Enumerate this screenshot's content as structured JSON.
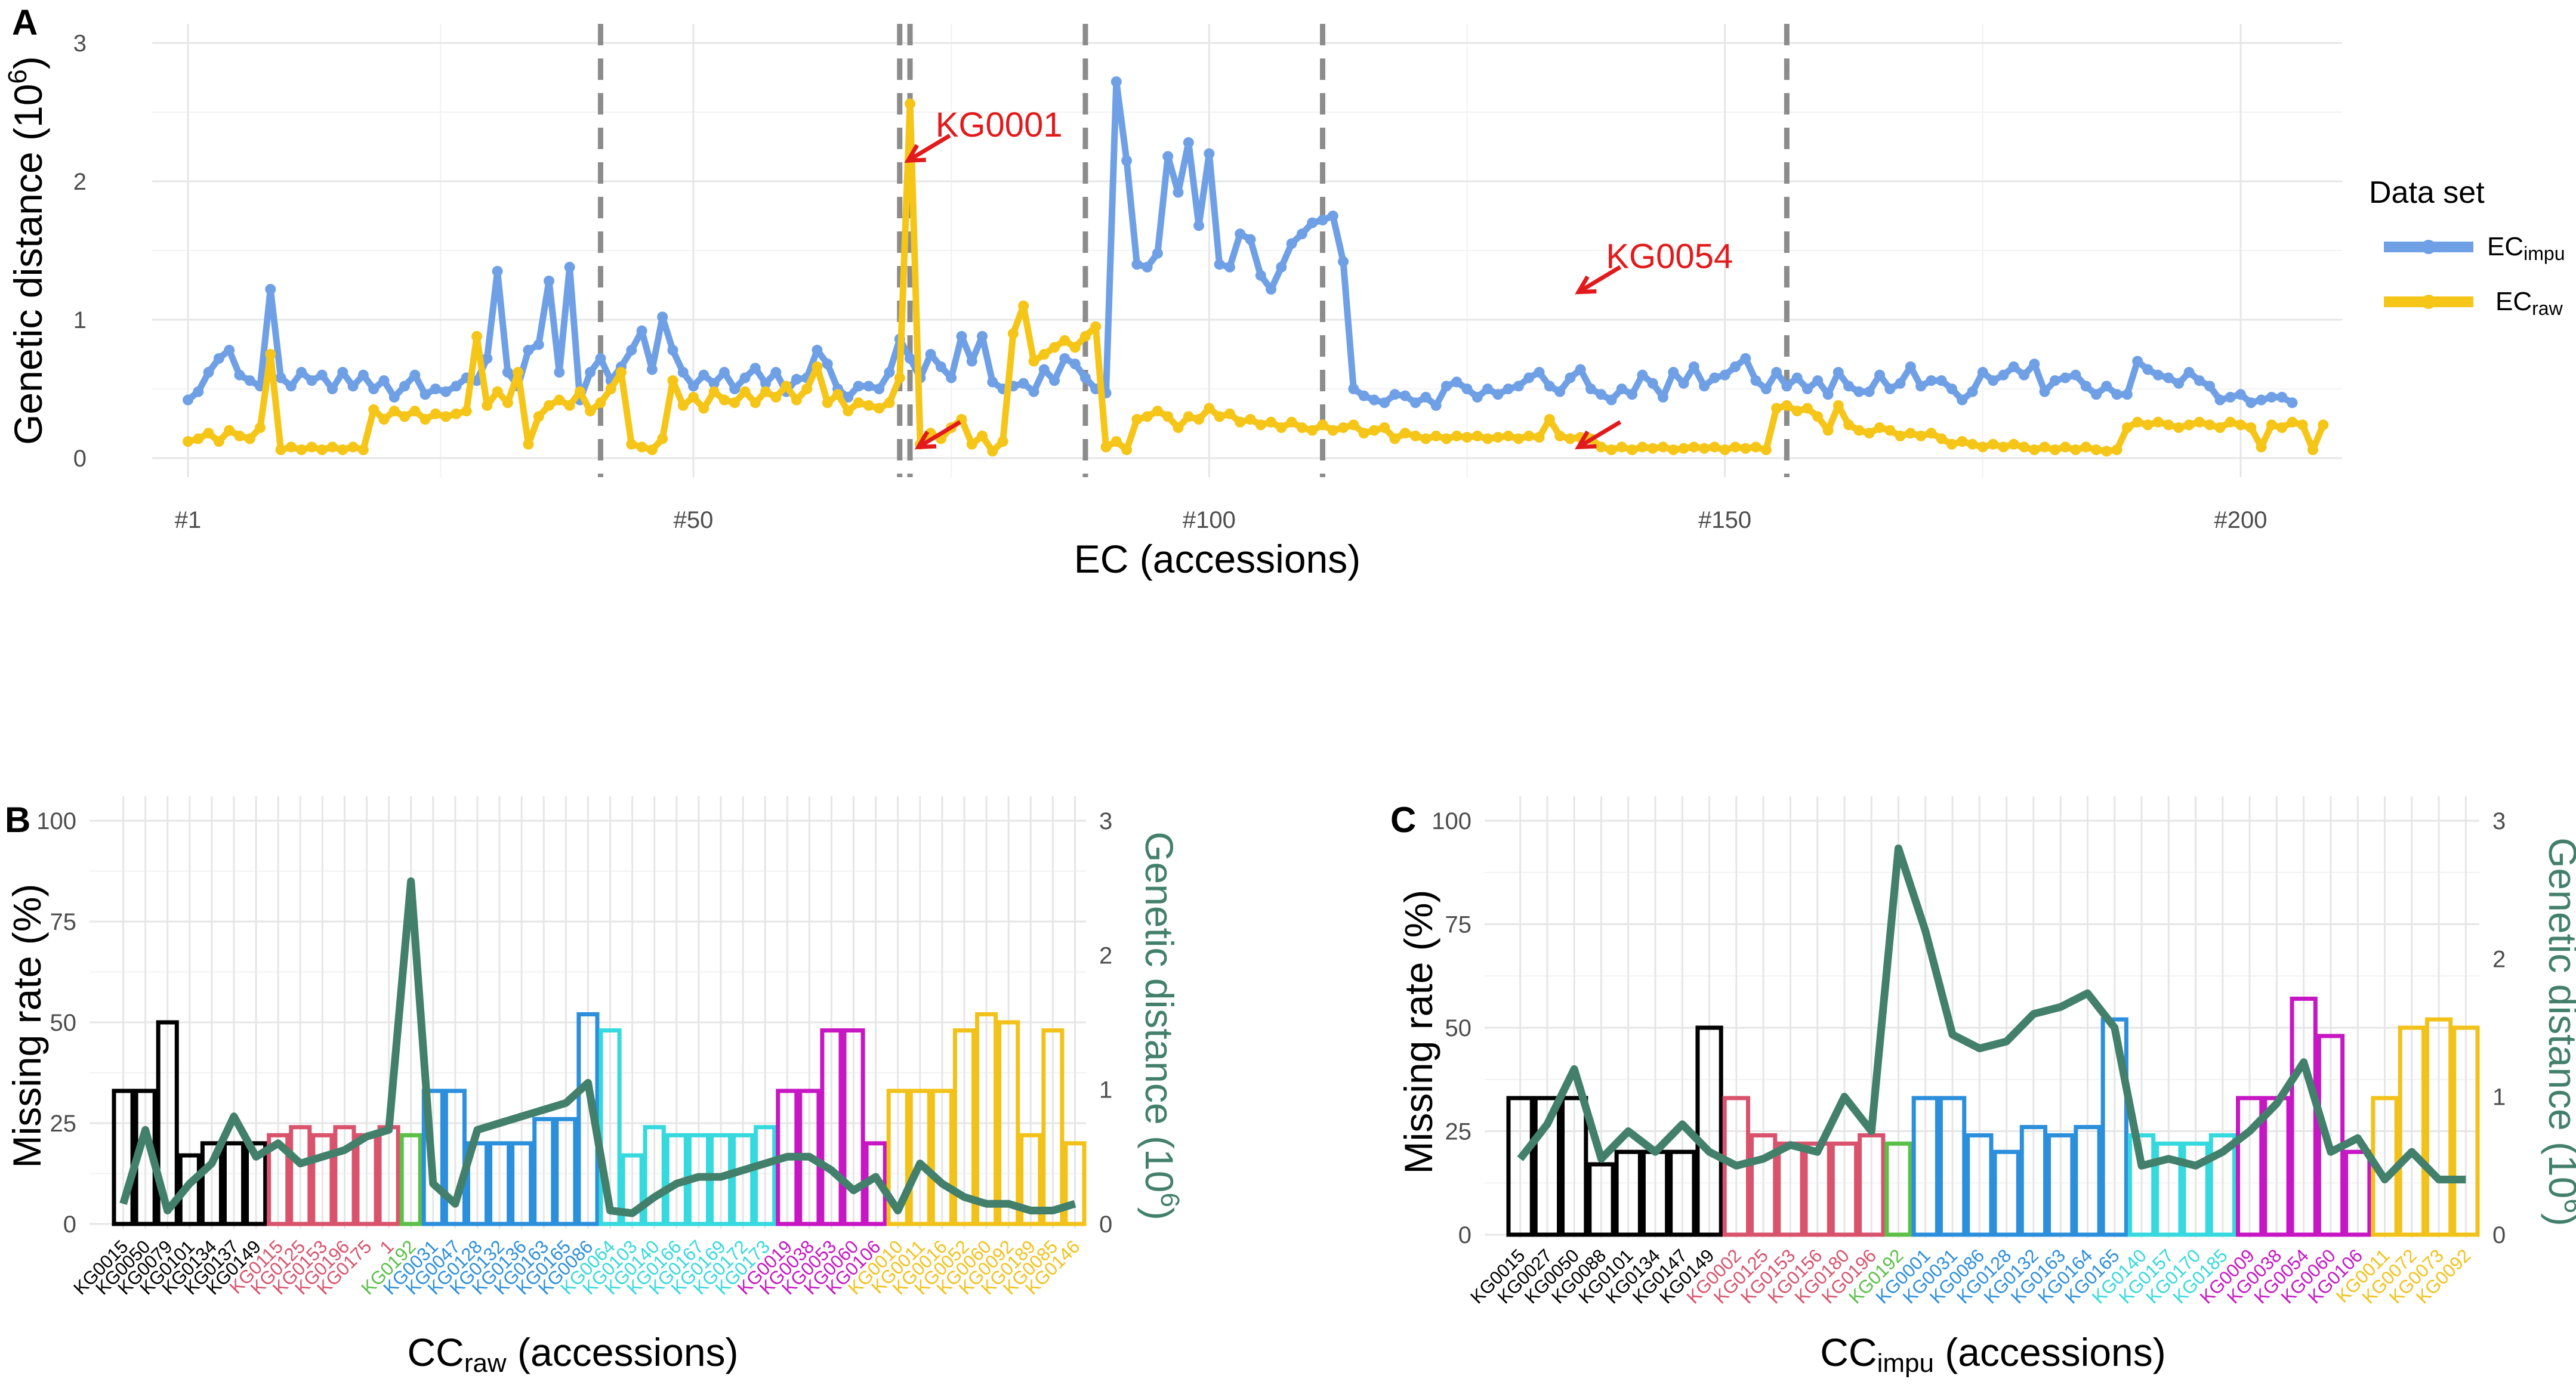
{
  "chart_data": [
    {
      "panel": "A",
      "type": "line",
      "xlabel": "EC (accessions)",
      "ylabel": "Genetic distance (10",
      "ylabel_sup": "6",
      "ylabel_tail": ")",
      "xlim": [
        1,
        200
      ],
      "ylim": [
        0,
        3
      ],
      "xtick_values": [
        1,
        50,
        100,
        150,
        200
      ],
      "xtick_labels": [
        "#1",
        "#50",
        "#100",
        "#150",
        "#200"
      ],
      "ytick_values": [
        0,
        1,
        2,
        3
      ],
      "ytick_labels": [
        "0",
        "1",
        "2",
        "3"
      ],
      "legend_title": "Data set",
      "legend_position": "right",
      "group_boundaries": [
        41,
        70,
        71,
        88,
        111,
        156
      ],
      "series": [
        {
          "name": "ECimpu",
          "name_main": "EC",
          "name_sub": "impu",
          "color": "#6fa0e6",
          "values": [
            0.42,
            0.48,
            0.62,
            0.72,
            0.78,
            0.6,
            0.56,
            0.52,
            1.22,
            0.58,
            0.52,
            0.62,
            0.56,
            0.6,
            0.5,
            0.62,
            0.52,
            0.6,
            0.5,
            0.56,
            0.44,
            0.52,
            0.6,
            0.46,
            0.5,
            0.48,
            0.52,
            0.58,
            0.56,
            0.72,
            1.35,
            0.62,
            0.52,
            0.78,
            0.82,
            1.28,
            0.62,
            1.38,
            0.42,
            0.62,
            0.72,
            0.56,
            0.66,
            0.78,
            0.92,
            0.64,
            1.02,
            0.78,
            0.62,
            0.52,
            0.6,
            0.54,
            0.62,
            0.5,
            0.58,
            0.65,
            0.54,
            0.62,
            0.48,
            0.57,
            0.58,
            0.78,
            0.68,
            0.5,
            0.44,
            0.52,
            0.52,
            0.5,
            0.62,
            0.86,
            0.72,
            0.58,
            0.75,
            0.66,
            0.58,
            0.88,
            0.7,
            0.88,
            0.55,
            0.5,
            0.52,
            0.54,
            0.48,
            0.64,
            0.56,
            0.72,
            0.68,
            0.58,
            0.5,
            0.47,
            2.72,
            2.15,
            1.4,
            1.38,
            1.48,
            2.18,
            1.92,
            2.28,
            1.68,
            2.2,
            1.4,
            1.38,
            1.62,
            1.58,
            1.32,
            1.22,
            1.38,
            1.55,
            1.62,
            1.7,
            1.72,
            1.75,
            1.42,
            0.5,
            0.45,
            0.42,
            0.4,
            0.46,
            0.45,
            0.4,
            0.44,
            0.38,
            0.52,
            0.55,
            0.5,
            0.44,
            0.5,
            0.46,
            0.5,
            0.52,
            0.58,
            0.62,
            0.52,
            0.48,
            0.58,
            0.64,
            0.5,
            0.46,
            0.42,
            0.5,
            0.46,
            0.6,
            0.54,
            0.44,
            0.62,
            0.54,
            0.66,
            0.52,
            0.58,
            0.6,
            0.66,
            0.72,
            0.56,
            0.5,
            0.62,
            0.52,
            0.58,
            0.5,
            0.56,
            0.46,
            0.62,
            0.52,
            0.48,
            0.48,
            0.6,
            0.5,
            0.54,
            0.66,
            0.52,
            0.56,
            0.56,
            0.5,
            0.42,
            0.48,
            0.62,
            0.56,
            0.6,
            0.66,
            0.6,
            0.68,
            0.48,
            0.56,
            0.58,
            0.6,
            0.52,
            0.46,
            0.52,
            0.46,
            0.46,
            0.7,
            0.64,
            0.6,
            0.58,
            0.54,
            0.62,
            0.56,
            0.52,
            0.42,
            0.44,
            0.46,
            0.4,
            0.42,
            0.44,
            0.44,
            0.4
          ],
          "value_note": "per-accession values estimated from plot"
        },
        {
          "name": "ECraw",
          "name_main": "EC",
          "name_sub": "raw",
          "color": "#f5c518",
          "values": [
            0.12,
            0.14,
            0.18,
            0.12,
            0.2,
            0.16,
            0.14,
            0.22,
            0.75,
            0.06,
            0.08,
            0.06,
            0.08,
            0.06,
            0.08,
            0.06,
            0.08,
            0.06,
            0.35,
            0.28,
            0.34,
            0.3,
            0.34,
            0.28,
            0.32,
            0.3,
            0.32,
            0.34,
            0.88,
            0.38,
            0.48,
            0.4,
            0.62,
            0.1,
            0.3,
            0.38,
            0.42,
            0.38,
            0.48,
            0.34,
            0.4,
            0.5,
            0.62,
            0.1,
            0.08,
            0.06,
            0.14,
            0.56,
            0.38,
            0.44,
            0.36,
            0.48,
            0.42,
            0.4,
            0.48,
            0.4,
            0.48,
            0.44,
            0.52,
            0.42,
            0.5,
            0.66,
            0.4,
            0.46,
            0.34,
            0.4,
            0.38,
            0.36,
            0.4,
            0.58,
            2.56,
            0.1,
            0.18,
            0.14,
            0.22,
            0.28,
            0.1,
            0.16,
            0.05,
            0.12,
            0.9,
            1.1,
            0.7,
            0.75,
            0.8,
            0.85,
            0.8,
            0.88,
            0.95,
            0.08,
            0.12,
            0.06,
            0.28,
            0.3,
            0.34,
            0.3,
            0.22,
            0.3,
            0.28,
            0.36,
            0.3,
            0.32,
            0.26,
            0.28,
            0.24,
            0.26,
            0.22,
            0.26,
            0.22,
            0.2,
            0.24,
            0.2,
            0.22,
            0.24,
            0.18,
            0.2,
            0.22,
            0.14,
            0.18,
            0.16,
            0.14,
            0.16,
            0.14,
            0.16,
            0.15,
            0.16,
            0.14,
            0.15,
            0.16,
            0.14,
            0.16,
            0.15,
            0.28,
            0.16,
            0.14,
            0.15,
            0.14,
            0.08,
            0.06,
            0.08,
            0.06,
            0.08,
            0.07,
            0.08,
            0.06,
            0.07,
            0.08,
            0.07,
            0.08,
            0.06,
            0.08,
            0.07,
            0.08,
            0.06,
            0.36,
            0.38,
            0.34,
            0.36,
            0.3,
            0.2,
            0.38,
            0.24,
            0.2,
            0.18,
            0.22,
            0.2,
            0.16,
            0.18,
            0.16,
            0.18,
            0.14,
            0.1,
            0.12,
            0.1,
            0.08,
            0.1,
            0.08,
            0.1,
            0.08,
            0.06,
            0.08,
            0.06,
            0.08,
            0.06,
            0.08,
            0.06,
            0.05,
            0.06,
            0.22,
            0.26,
            0.24,
            0.26,
            0.24,
            0.22,
            0.24,
            0.26,
            0.24,
            0.22,
            0.26,
            0.24,
            0.22,
            0.08,
            0.24,
            0.22,
            0.26,
            0.24,
            0.06,
            0.24
          ],
          "value_note": "per-accession values estimated from plot"
        }
      ],
      "annotations": [
        {
          "text": "KG0001",
          "x": 70,
          "y": 2.15
        },
        {
          "text": "KG0054",
          "x": 135,
          "y": 1.2
        },
        {
          "text": "",
          "x": 71,
          "y": 0.08
        },
        {
          "text": "",
          "x": 135,
          "y": 0.08
        }
      ]
    },
    {
      "panel": "B",
      "type": "bar",
      "xlabel_main": "CC",
      "xlabel_sub": "raw",
      "xlabel_tail": " (accessions)",
      "ylabel": "Missing rate (%)",
      "y2label": "Genetic distance (10",
      "y2label_sup": "6",
      "y2label_tail": ")",
      "ylim": [
        0,
        100
      ],
      "y2lim": [
        0,
        3
      ],
      "ytick_values": [
        0,
        25,
        50,
        75,
        100
      ],
      "ytick_labels": [
        "0",
        "25",
        "50",
        "75",
        "100"
      ],
      "y2tick_values": [
        0,
        1,
        2,
        3
      ],
      "y2tick_labels": [
        "0",
        "1",
        "2",
        "3"
      ],
      "line_color": "#43806b",
      "categories": [
        "KG0015",
        "KG0050",
        "KG0079",
        "KG0101",
        "KG0134",
        "KG0137",
        "KG0149",
        "KG0115",
        "KG0125",
        "KG0153",
        "KG0196",
        "KG0175",
        "1",
        "KG0192",
        "KG0031",
        "KG0047",
        "KG0128",
        "KG0132",
        "KG0136",
        "KG0163",
        "KG0165",
        "KG0086",
        "KG0064",
        "KG0103",
        "KG0140",
        "KG0166",
        "KG0167",
        "KG0169",
        "KG0172",
        "KG0173",
        "KG0019",
        "KG0038",
        "KG0053",
        "KG0060",
        "KG0106",
        "KG0010",
        "KG0011",
        "KG0016",
        "KG0052",
        "KG0060",
        "KG0092",
        "KG0189",
        "KG0085",
        "KG0146"
      ],
      "groups": [
        "black",
        "black",
        "black",
        "black",
        "black",
        "black",
        "black",
        "red",
        "red",
        "red",
        "red",
        "red",
        "red",
        "green",
        "blue",
        "blue",
        "blue",
        "blue",
        "blue",
        "blue",
        "blue",
        "blue",
        "cyan",
        "cyan",
        "cyan",
        "cyan",
        "cyan",
        "cyan",
        "cyan",
        "cyan",
        "magenta",
        "magenta",
        "magenta",
        "magenta",
        "magenta",
        "yellow",
        "yellow",
        "yellow",
        "yellow",
        "yellow",
        "yellow",
        "yellow",
        "yellow",
        "yellow"
      ],
      "missing_rate": [
        33,
        33,
        50,
        17,
        20,
        20,
        20,
        22,
        24,
        22,
        24,
        22,
        24,
        22,
        33,
        33,
        20,
        20,
        20,
        26,
        26,
        52,
        48,
        17,
        24,
        22,
        22,
        22,
        22,
        24,
        33,
        33,
        48,
        48,
        20,
        33,
        33,
        33,
        48,
        52,
        50,
        22,
        48,
        20
      ],
      "genetic_distance": [
        0.15,
        0.7,
        0.1,
        0.3,
        0.45,
        0.8,
        0.5,
        0.6,
        0.45,
        0.5,
        0.55,
        0.65,
        0.7,
        2.55,
        0.3,
        0.15,
        0.7,
        0.75,
        0.8,
        0.85,
        0.9,
        1.05,
        0.1,
        0.08,
        0.2,
        0.3,
        0.35,
        0.35,
        0.4,
        0.45,
        0.5,
        0.5,
        0.4,
        0.25,
        0.35,
        0.1,
        0.45,
        0.3,
        0.2,
        0.15,
        0.15,
        0.1,
        0.1,
        0.15
      ]
    },
    {
      "panel": "C",
      "type": "bar",
      "xlabel_main": "CC",
      "xlabel_sub": "impu",
      "xlabel_tail": " (accessions)",
      "ylabel": "Missing rate (%)",
      "y2label": "Genetic distance (10",
      "y2label_sup": "6",
      "y2label_tail": ")",
      "ylim": [
        0,
        100
      ],
      "y2lim": [
        0,
        3
      ],
      "ytick_values": [
        0,
        25,
        50,
        75,
        100
      ],
      "ytick_labels": [
        "0",
        "25",
        "50",
        "75",
        "100"
      ],
      "y2tick_values": [
        0,
        1,
        2,
        3
      ],
      "y2tick_labels": [
        "0",
        "1",
        "2",
        "3"
      ],
      "line_color": "#43806b",
      "categories": [
        "KG0015",
        "KG0027",
        "KG0050",
        "KG0088",
        "KG0101",
        "KG0134",
        "KG0147",
        "KG0149",
        "KG0002",
        "KG0125",
        "KG0153",
        "KG0156",
        "KG0180",
        "KG0196",
        "KG0192",
        "KG0001",
        "KG0031",
        "KG0086",
        "KG0128",
        "KG0132",
        "KG0163",
        "KG0164",
        "KG0165",
        "KG0140",
        "KG0157",
        "KG0170",
        "KG0185",
        "KG0009",
        "KG0038",
        "KG0054",
        "KG0060",
        "KG0106",
        "KG0011",
        "KG0072",
        "KG0073",
        "KG0092"
      ],
      "groups": [
        "black",
        "black",
        "black",
        "black",
        "black",
        "black",
        "black",
        "black",
        "red",
        "red",
        "red",
        "red",
        "red",
        "red",
        "green",
        "blue",
        "blue",
        "blue",
        "blue",
        "blue",
        "blue",
        "blue",
        "blue",
        "cyan",
        "cyan",
        "cyan",
        "cyan",
        "magenta",
        "magenta",
        "magenta",
        "magenta",
        "magenta",
        "yellow",
        "yellow",
        "yellow",
        "yellow"
      ],
      "missing_rate": [
        33,
        33,
        33,
        17,
        20,
        20,
        20,
        50,
        33,
        24,
        22,
        22,
        22,
        24,
        22,
        33,
        33,
        24,
        20,
        26,
        24,
        26,
        52,
        24,
        22,
        22,
        24,
        33,
        33,
        57,
        48,
        20,
        33,
        50,
        52,
        50
      ],
      "genetic_distance": [
        0.55,
        0.8,
        1.2,
        0.55,
        0.75,
        0.6,
        0.8,
        0.6,
        0.5,
        0.55,
        0.65,
        0.6,
        1.0,
        0.75,
        2.8,
        2.2,
        1.45,
        1.35,
        1.4,
        1.6,
        1.65,
        1.75,
        1.5,
        0.5,
        0.55,
        0.5,
        0.6,
        0.75,
        0.95,
        1.25,
        0.6,
        0.7,
        0.4,
        0.6,
        0.4,
        0.4
      ]
    }
  ],
  "colors": {
    "black": "#000000",
    "red": "#d9536c",
    "green": "#5bbf48",
    "blue": "#2c8fdc",
    "cyan": "#36d9dd",
    "magenta": "#c716c4",
    "yellow": "#f2c21b",
    "dashed_line": "#8c8c8c",
    "annotation": "#e31a1c",
    "line_green": "#43806b"
  }
}
